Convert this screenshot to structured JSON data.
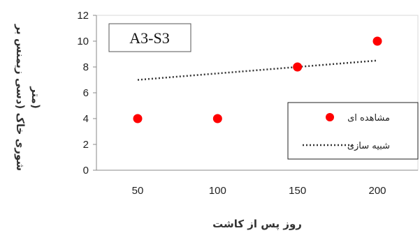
{
  "chart_data": {
    "type": "scatter",
    "annotation": "A3-S3",
    "xlabel": "روز پس از کاشت",
    "ylabel": [
      "شوری خاک (دسی زیمنس بر",
      "متر)"
    ],
    "categories": [
      "50",
      "100",
      "150",
      "200"
    ],
    "ylim": [
      0,
      12
    ],
    "yticks": [
      0,
      2,
      4,
      6,
      8,
      10,
      12
    ],
    "grid": false,
    "legend_position": "bottom-right",
    "series": [
      {
        "name": "مشاهده ای",
        "kind": "points",
        "color": "#ff0000",
        "x": [
          50,
          100,
          150,
          200
        ],
        "y": [
          4,
          4,
          8,
          10
        ]
      },
      {
        "name": "شبیه سازی",
        "kind": "dotted-line",
        "color": "#333333",
        "x": [
          50,
          200
        ],
        "y": [
          7.0,
          8.5
        ]
      }
    ]
  }
}
